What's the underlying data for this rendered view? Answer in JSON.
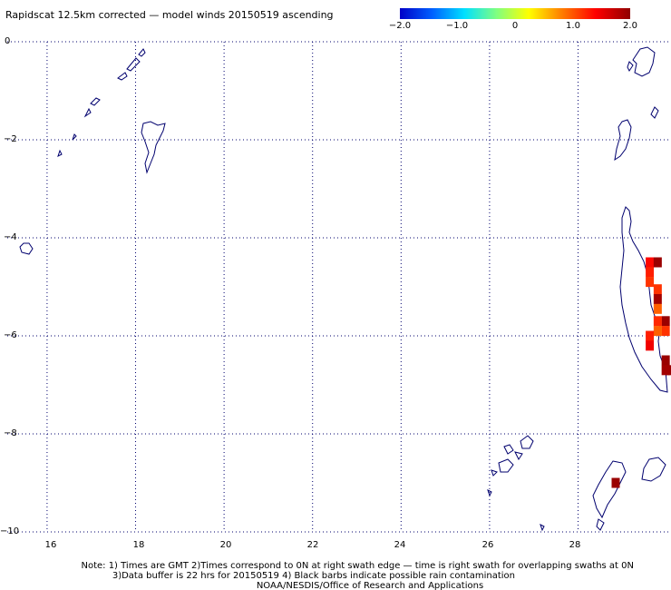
{
  "title": "Rapidscat 12.5km corrected — model winds 20150519 ascending",
  "colorbar": {
    "ticks": [
      "−2.0",
      "−1.0",
      "0",
      "1.0",
      "2.0"
    ],
    "stops": [
      "#0000c8",
      "#0060ff",
      "#00e0ff",
      "#80ff80",
      "#ffff00",
      "#ff8000",
      "#ff0000",
      "#900000"
    ]
  },
  "map": {
    "lon_range": [
      15.1,
      30.1
    ],
    "lat_range": [
      -10,
      0
    ],
    "x_ticks": [
      "16",
      "18",
      "20",
      "22",
      "24",
      "26",
      "28"
    ],
    "x_tick_values": [
      16,
      18,
      20,
      22,
      24,
      26,
      28
    ],
    "y_ticks": [
      "0",
      "−2",
      "−4",
      "−6",
      "−8",
      "−10"
    ],
    "y_tick_values": [
      0,
      -2,
      -4,
      -6,
      -8,
      -10
    ],
    "coast_color": "#00006e",
    "grid_color": "#00006e"
  },
  "wind_cells": [
    {
      "lon": 29.62,
      "lat": -4.5,
      "value": 1.4
    },
    {
      "lon": 29.62,
      "lat": -4.7,
      "value": 1.3
    },
    {
      "lon": 29.62,
      "lat": -4.9,
      "value": 1.2
    },
    {
      "lon": 29.8,
      "lat": -4.5,
      "value": 1.95
    },
    {
      "lon": 29.8,
      "lat": -5.05,
      "value": 1.2
    },
    {
      "lon": 29.8,
      "lat": -5.25,
      "value": 1.9
    },
    {
      "lon": 29.8,
      "lat": -5.45,
      "value": 1.0
    },
    {
      "lon": 29.98,
      "lat": -5.7,
      "value": 1.95
    },
    {
      "lon": 29.8,
      "lat": -5.7,
      "value": 1.25
    },
    {
      "lon": 29.98,
      "lat": -5.9,
      "value": 1.2
    },
    {
      "lon": 29.8,
      "lat": -5.9,
      "value": 1.0
    },
    {
      "lon": 29.62,
      "lat": -6.0,
      "value": 1.3
    },
    {
      "lon": 29.62,
      "lat": -6.2,
      "value": 1.5
    },
    {
      "lon": 29.98,
      "lat": -6.5,
      "value": 1.95
    },
    {
      "lon": 30.08,
      "lat": -6.7,
      "value": 1.95
    },
    {
      "lon": 29.98,
      "lat": -6.7,
      "value": 1.9
    },
    {
      "lon": 28.85,
      "lat": -9.0,
      "value": 1.95
    }
  ],
  "notes": [
    "Note: 1) Times are GMT 2)Times correspond to 0N at right swath edge — time is right swath for overlapping swaths at 0N",
    "3)Data buffer is 22 hrs for 20150519 4) Black barbs indicate possible rain contamination",
    "NOAA/NESDIS/Office of Research and Applications"
  ]
}
